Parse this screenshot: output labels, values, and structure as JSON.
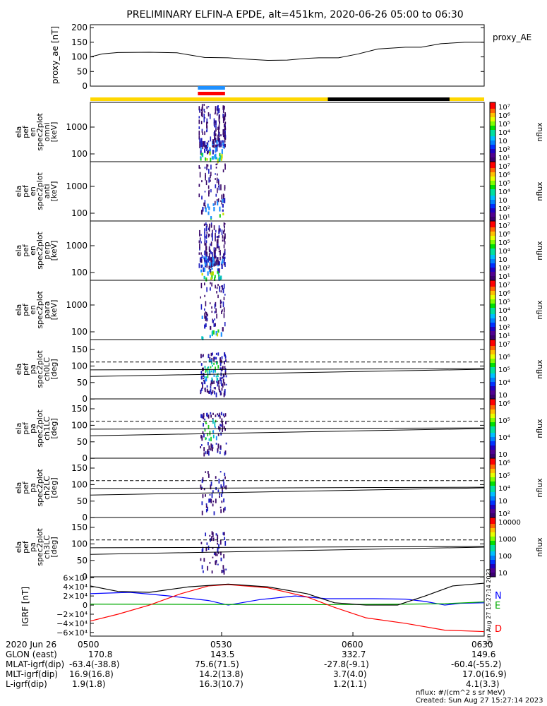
{
  "title": "PRELIMINARY ELFIN-A EPDE, alt=451km, 2020-06-26 05:00 to 06:30",
  "proxy_ae": {
    "ylabel": "proxy_ae [nT]",
    "legend": "proxy_AE",
    "ticks": [
      "200",
      "150",
      "100",
      "50",
      "0"
    ],
    "tick_values": [
      200,
      150,
      100,
      50,
      0
    ],
    "ylim": [
      0,
      210
    ],
    "series": [
      [
        0,
        100
      ],
      [
        3,
        110
      ],
      [
        7,
        115
      ],
      [
        15,
        116
      ],
      [
        22,
        114
      ],
      [
        29,
        98
      ],
      [
        35,
        97
      ],
      [
        40,
        92
      ],
      [
        45,
        88
      ],
      [
        50,
        89
      ],
      [
        55,
        95
      ],
      [
        58,
        97
      ],
      [
        63,
        97
      ],
      [
        68,
        110
      ],
      [
        73,
        127
      ],
      [
        80,
        133
      ],
      [
        84,
        133
      ],
      [
        89,
        145
      ],
      [
        95,
        150
      ],
      [
        100,
        150
      ]
    ]
  },
  "status_bar": {
    "colors": {
      "day": "#ffd700",
      "night": "#000000",
      "mark_top": "#1e90ff",
      "mark_bottom": "#ff0000"
    },
    "night_range": [
      60.3,
      91.2
    ],
    "mark_range": [
      27.3,
      34.2
    ]
  },
  "energy_panels": [
    {
      "name": "omni",
      "ylabel": [
        "ela",
        "pef",
        "en",
        "spec2plot",
        "omni",
        "[keV]"
      ],
      "ticks": [
        "1000",
        "100"
      ],
      "cbar_ticks": [
        "10⁷",
        "10⁶",
        "10⁵",
        "10⁴",
        "10⁳",
        "10²",
        "10¹"
      ],
      "cbar_label": "nflux"
    },
    {
      "name": "anti",
      "ylabel": [
        "ela",
        "pef",
        "en",
        "spec2plot",
        "anti",
        "[keV]"
      ],
      "ticks": [
        "1000",
        "100"
      ],
      "cbar_ticks": [
        "10⁷",
        "10⁶",
        "10⁵",
        "10⁴",
        "10⁳",
        "10²",
        "10¹"
      ],
      "cbar_label": "nflux"
    },
    {
      "name": "perp",
      "ylabel": [
        "ela",
        "pef",
        "en",
        "spec2plot",
        "perp",
        "[keV]"
      ],
      "ticks": [
        "1000",
        "100"
      ],
      "cbar_ticks": [
        "10⁷",
        "10⁶",
        "10⁵",
        "10⁴",
        "10⁳",
        "10²",
        "10¹"
      ],
      "cbar_label": "nflux"
    },
    {
      "name": "para",
      "ylabel": [
        "ela",
        "pef",
        "en",
        "spec2plot",
        "para",
        "[keV]"
      ],
      "ticks": [
        "1000",
        "100"
      ],
      "cbar_ticks": [
        "10⁷",
        "10⁶",
        "10⁵",
        "10⁴",
        "10⁳",
        "10²",
        "10¹"
      ],
      "cbar_label": "nflux"
    }
  ],
  "pa_panels": [
    {
      "name": "ch0LC",
      "ylabel": [
        "ela",
        "pef",
        "pa",
        "spec2plot",
        "ch0LC",
        "[deg]"
      ],
      "ticks": [
        "150",
        "100",
        "50",
        "0"
      ],
      "cbar_ticks": [
        "10⁷",
        "10⁶",
        "10⁵",
        "10⁴",
        "10⁳"
      ],
      "cbar_label": "nflux"
    },
    {
      "name": "ch1LC",
      "ylabel": [
        "ela",
        "pef",
        "pa",
        "spec2plot",
        "ch1LC",
        "[deg]"
      ],
      "ticks": [
        "150",
        "100",
        "50",
        "0"
      ],
      "cbar_ticks": [
        "10⁶",
        "10⁵",
        "10⁴",
        "10⁳"
      ],
      "cbar_label": "nflux"
    },
    {
      "name": "ch2LC",
      "ylabel": [
        "ela",
        "pef",
        "pa",
        "spec2plot",
        "ch2LC",
        "[deg]"
      ],
      "ticks": [
        "150",
        "100",
        "50",
        "0"
      ],
      "cbar_ticks": [
        "10⁶",
        "10⁵",
        "10⁴",
        "10⁳",
        "10²"
      ],
      "cbar_label": "nflux"
    },
    {
      "name": "ch3LC",
      "ylabel": [
        "ela",
        "pef",
        "pa",
        "spec2plot",
        "ch3LC",
        "[deg]"
      ],
      "ticks": [
        "150",
        "100",
        "50",
        "0"
      ],
      "cbar_ticks": [
        "10000",
        "1000",
        "100",
        "10"
      ],
      "cbar_label": "nflux"
    }
  ],
  "pa_lines": {
    "dashed": 112,
    "upper": [
      88,
      92
    ],
    "lower": [
      68,
      90
    ]
  },
  "igrf": {
    "ylabel": "IGRF [nT]",
    "ticks": [
      "6×10⁴",
      "4×10⁴",
      "2×10⁴",
      "0",
      "−2×10⁴",
      "−4×10⁴",
      "−6×10⁴"
    ],
    "tick_values": [
      60000,
      40000,
      20000,
      0,
      -20000,
      -40000,
      -60000
    ],
    "ylim": [
      -68000,
      62000
    ],
    "series": [
      {
        "name": "N",
        "color": "#0000ff",
        "points": [
          [
            0,
            25000
          ],
          [
            10,
            28000
          ],
          [
            20,
            20000
          ],
          [
            30,
            10000
          ],
          [
            35,
            0
          ],
          [
            43,
            12000
          ],
          [
            52,
            20000
          ],
          [
            60,
            14000
          ],
          [
            66,
            14000
          ],
          [
            72,
            14000
          ],
          [
            80,
            13000
          ],
          [
            85,
            8000
          ],
          [
            90,
            0
          ],
          [
            94,
            4000
          ],
          [
            100,
            5000
          ]
        ]
      },
      {
        "name": "E",
        "color": "#00aa00",
        "points": [
          [
            0,
            2000
          ],
          [
            30,
            1500
          ],
          [
            60,
            1000
          ],
          [
            80,
            2000
          ],
          [
            90,
            3000
          ],
          [
            100,
            7000
          ]
        ]
      },
      {
        "name": "D",
        "color": "#ff0000",
        "points": [
          [
            0,
            -35000
          ],
          [
            7,
            -20000
          ],
          [
            15,
            0
          ],
          [
            23,
            25000
          ],
          [
            30,
            42000
          ],
          [
            35,
            45000
          ],
          [
            45,
            38000
          ],
          [
            55,
            18000
          ],
          [
            62,
            -5000
          ],
          [
            70,
            -28000
          ],
          [
            80,
            -40000
          ],
          [
            90,
            -55000
          ],
          [
            100,
            -58000
          ]
        ]
      },
      {
        "name": "",
        "color": "#000000",
        "points": [
          [
            0,
            42000
          ],
          [
            7,
            30000
          ],
          [
            15,
            28000
          ],
          [
            25,
            40000
          ],
          [
            35,
            46000
          ],
          [
            45,
            40000
          ],
          [
            55,
            25000
          ],
          [
            62,
            5000
          ],
          [
            70,
            0
          ],
          [
            78,
            0
          ],
          [
            85,
            20000
          ],
          [
            92,
            42000
          ],
          [
            100,
            48000
          ]
        ]
      }
    ],
    "side_stamp": "Sun Aug 27 15:27:14 2023"
  },
  "footer": {
    "time_labels": [
      "0500",
      "0530",
      "0600",
      "0630"
    ],
    "row_date": "2020 Jun 26",
    "rows": [
      {
        "label": "GLON (east)",
        "values": [
          "170.8",
          "143.5",
          "332.7",
          "149.6"
        ]
      },
      {
        "label": "MLAT-igrf(dip)",
        "values": [
          "-63.4(-38.8)",
          "75.6(71.5)",
          "-27.8(-9.1)",
          "-60.4(-55.2)"
        ]
      },
      {
        "label": "MLT-igrf(dip)",
        "values": [
          "16.9(16.8)",
          "14.2(13.8)",
          "3.7(4.0)",
          "17.0(16.9)"
        ]
      },
      {
        "label": "L-igrf(dip)",
        "values": [
          "1.9(1.8)",
          "16.3(10.7)",
          "1.2(1.1)",
          "4.1(3.3)"
        ]
      }
    ],
    "units_note": "nflux: #/(cm^2 s sr MeV)",
    "created": "Created: Sun Aug 27 15:27:14 2023"
  },
  "chart_data": {
    "type": "heatmap",
    "title": "PRELIMINARY ELFIN-A EPDE, alt=451km, 2020-06-26 05:00 to 06:30",
    "x_range": [
      "05:00",
      "06:30"
    ],
    "time_ticks": [
      "0500",
      "0530",
      "0600",
      "0630"
    ],
    "proxy_ae_ylim": [
      0,
      200
    ],
    "energy_ylim_keV": [
      50,
      7000
    ],
    "pa_ylim_deg": [
      0,
      180
    ],
    "igrf_ylim_nT": [
      -60000,
      60000
    ],
    "activity_window": [
      "05:27",
      "05:33"
    ]
  }
}
